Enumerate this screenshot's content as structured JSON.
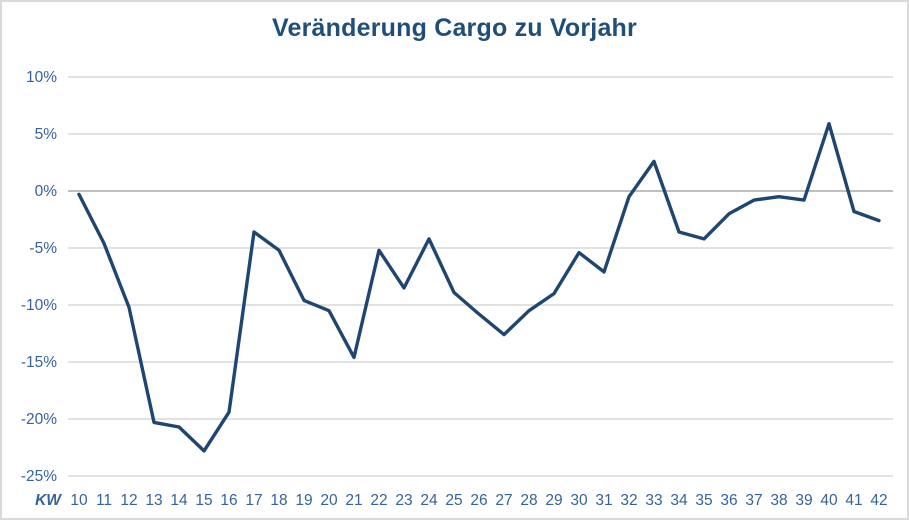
{
  "window": {
    "background": "#FFFFFF",
    "border_color": "#D9D9D9"
  },
  "chart_data": {
    "type": "line",
    "title": "Veränderung Cargo zu Vorjahr",
    "x_axis_prefix_label": "KW",
    "categories": [
      10,
      11,
      12,
      13,
      14,
      15,
      16,
      17,
      18,
      19,
      20,
      21,
      22,
      23,
      24,
      25,
      26,
      27,
      28,
      29,
      30,
      31,
      32,
      33,
      34,
      35,
      36,
      37,
      38,
      39,
      40,
      41,
      42
    ],
    "values": [
      -0.3,
      -4.6,
      -10.2,
      -20.3,
      -20.7,
      -22.8,
      -19.4,
      -3.6,
      -5.2,
      -9.6,
      -10.5,
      -14.6,
      -5.2,
      -8.5,
      -4.2,
      -8.9,
      -10.8,
      -12.6,
      -10.5,
      -9.0,
      -5.4,
      -7.1,
      -0.5,
      2.6,
      -3.6,
      -4.2,
      -2.0,
      -0.8,
      -0.5,
      -0.8,
      5.9,
      -1.8,
      -2.6
    ],
    "unit": "%",
    "ylim": [
      -25,
      10
    ],
    "yticks": [
      10,
      5,
      0,
      -5,
      -10,
      -15,
      -20,
      -25
    ],
    "ytick_labels": [
      "10%",
      "5%",
      "0%",
      "-5%",
      "-10%",
      "-15%",
      "-20%",
      "-25%"
    ],
    "grid": "horizontal",
    "legend": "none",
    "colors": {
      "line": "#1F4571",
      "title": "#1F4E79",
      "tick_label": "#36639C",
      "gridline": "#D9D9D9",
      "zero_axis": "#BFBFBF"
    }
  }
}
